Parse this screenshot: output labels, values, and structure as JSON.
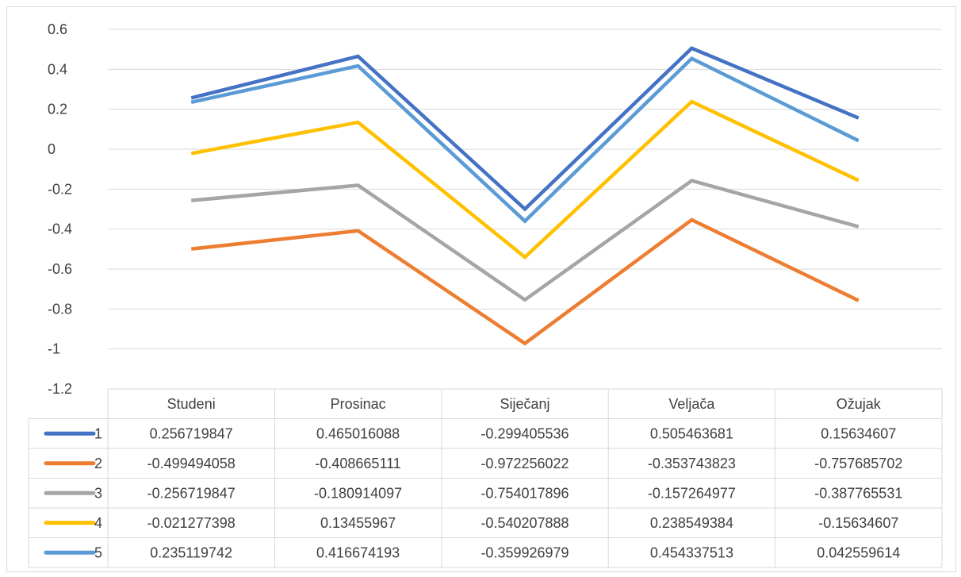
{
  "chart_data": {
    "type": "line",
    "title": "",
    "xlabel": "",
    "ylabel": "",
    "ylim": [
      -1.2,
      0.6
    ],
    "yticks": [
      "0.6",
      "0.4",
      "0.2",
      "0",
      "-0.2",
      "-0.4",
      "-0.6",
      "-0.8",
      "-1",
      "-1.2"
    ],
    "grid": true,
    "legend": "data-table",
    "categories": [
      "Studeni",
      "Prosinac",
      "Siječanj",
      "Veljača",
      "Ožujak"
    ],
    "series": [
      {
        "name": "1",
        "color": "#4472C4",
        "values": [
          0.256719847,
          0.465016088,
          -0.299405536,
          0.505463681,
          0.15634607
        ],
        "labels": [
          "0.256719847",
          "0.465016088",
          "-0.299405536",
          "0.505463681",
          "0.15634607"
        ]
      },
      {
        "name": "2",
        "color": "#ED7D31",
        "values": [
          -0.499494058,
          -0.408665111,
          -0.972256022,
          -0.353743823,
          -0.757685702
        ],
        "labels": [
          "-0.499494058",
          "-0.408665111",
          "-0.972256022",
          "-0.353743823",
          "-0.757685702"
        ]
      },
      {
        "name": "3",
        "color": "#A5A5A5",
        "values": [
          -0.256719847,
          -0.180914097,
          -0.754017896,
          -0.157264977,
          -0.387765531
        ],
        "labels": [
          "-0.256719847",
          "-0.180914097",
          "-0.754017896",
          "-0.157264977",
          "-0.387765531"
        ]
      },
      {
        "name": "4",
        "color": "#FFC000",
        "values": [
          -0.021277398,
          0.13455967,
          -0.540207888,
          0.238549384,
          -0.15634607
        ],
        "labels": [
          "-0.021277398",
          "0.13455967",
          "-0.540207888",
          "0.238549384",
          "-0.15634607"
        ]
      },
      {
        "name": "5",
        "color": "#5B9BD5",
        "values": [
          0.235119742,
          0.416674193,
          -0.359926979,
          0.454337513,
          0.042559614
        ],
        "labels": [
          "0.235119742",
          "0.416674193",
          "-0.359926979",
          "0.454337513",
          "0.042559614"
        ]
      }
    ]
  }
}
